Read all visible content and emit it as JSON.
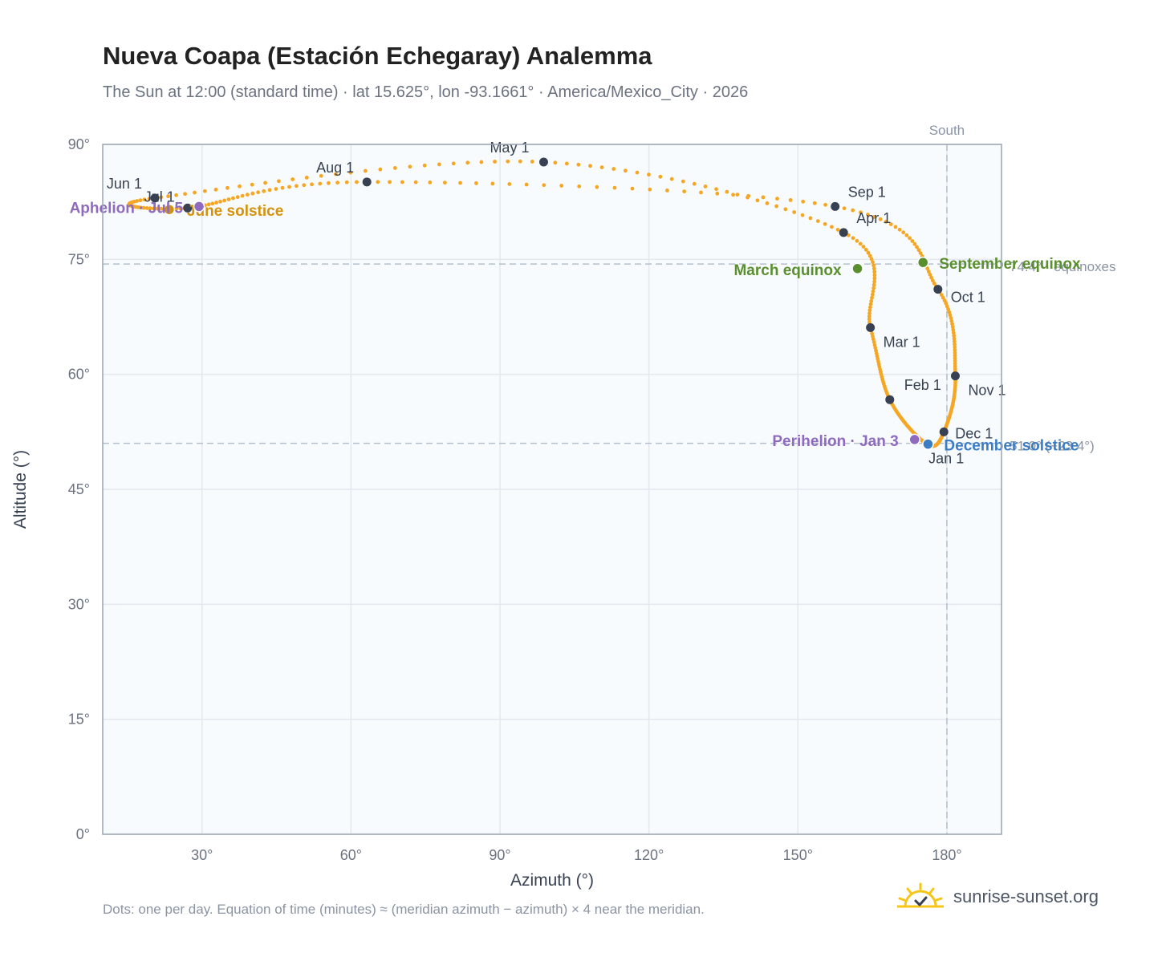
{
  "title": "Nueva Coapa (Estación Echegaray) Analemma",
  "subtitle": "The Sun at 12:00 (standard time) · lat 15.625°, lon -93.1661° · America/Mexico_City · 2026",
  "footnote": "Dots: one per day. Equation of time (minutes) ≈ (meridian azimuth − azimuth) × 4 near the meridian.",
  "brand": {
    "text": "sunrise-sunset.org",
    "icon": "sun-logo-icon"
  },
  "colors": {
    "path": "#f5a623",
    "month_point": "#374151",
    "equinox": "#5a8f2e",
    "june_solstice": "#d4920b",
    "december_solstice": "#3b7dc4",
    "aphelion_perihelion": "#8e6bbf",
    "plot_background": "#f8fbfe",
    "grid": "#e3e8ee",
    "reference_line": "#b4c0cc"
  },
  "chart_data": {
    "type": "scatter",
    "title": "Nueva Coapa (Estación Echegaray) Analemma",
    "xlabel": "Azimuth (°)",
    "ylabel": "Altitude (°)",
    "xlim": [
      10,
      191
    ],
    "ylim": [
      0,
      90
    ],
    "x_ticks": [
      30,
      60,
      90,
      120,
      150,
      180
    ],
    "x_tick_labels": [
      "30°",
      "60°",
      "90°",
      "120°",
      "150°",
      "180°"
    ],
    "y_ticks": [
      0,
      15,
      30,
      45,
      60,
      75,
      90
    ],
    "y_tick_labels": [
      "0°",
      "15°",
      "30°",
      "45°",
      "60°",
      "75°",
      "90°"
    ],
    "grid": true,
    "legend": "none",
    "south_line": {
      "azimuth": 180,
      "label": "South"
    },
    "reference_lines": [
      {
        "altitude": 74.4,
        "label": "74.4° · equinoxes"
      },
      {
        "altitude": 51.0,
        "label": "51.0° (−23.4°)"
      }
    ],
    "month_points": [
      {
        "label": "Jan 1",
        "az": 176.0,
        "alt": 50.9
      },
      {
        "label": "Feb 1",
        "az": 168.5,
        "alt": 56.7
      },
      {
        "label": "Mar 1",
        "az": 164.6,
        "alt": 66.1
      },
      {
        "label": "Apr 1",
        "az": 159.2,
        "alt": 78.5
      },
      {
        "label": "May 1",
        "az": 98.8,
        "alt": 87.7
      },
      {
        "label": "Jun 1",
        "az": 20.5,
        "alt": 83.0
      },
      {
        "label": "Jul 1",
        "az": 27.1,
        "alt": 81.7
      },
      {
        "label": "Aug 1",
        "az": 63.2,
        "alt": 85.1
      },
      {
        "label": "Sep 1",
        "az": 157.5,
        "alt": 81.9
      },
      {
        "label": "Oct 1",
        "az": 178.2,
        "alt": 71.1
      },
      {
        "label": "Nov 1",
        "az": 181.7,
        "alt": 59.8
      },
      {
        "label": "Dec 1",
        "az": 179.4,
        "alt": 52.5
      }
    ],
    "events": [
      {
        "label": "March equinox",
        "az": 162.0,
        "alt": 73.8,
        "kind": "equinox"
      },
      {
        "label": "June solstice",
        "az": 23.4,
        "alt": 81.5,
        "kind": "june_solstice"
      },
      {
        "label": "September equinox",
        "az": 175.2,
        "alt": 74.6,
        "kind": "equinox"
      },
      {
        "label": "December solstice",
        "az": 176.2,
        "alt": 50.9,
        "kind": "december_solstice"
      },
      {
        "label": "Perihelion · Jan 3",
        "az": 173.5,
        "alt": 51.5,
        "kind": "aphelion_perihelion"
      },
      {
        "label": "Aphelion · Jul 5",
        "az": 29.4,
        "alt": 81.9,
        "kind": "aphelion_perihelion"
      }
    ]
  }
}
